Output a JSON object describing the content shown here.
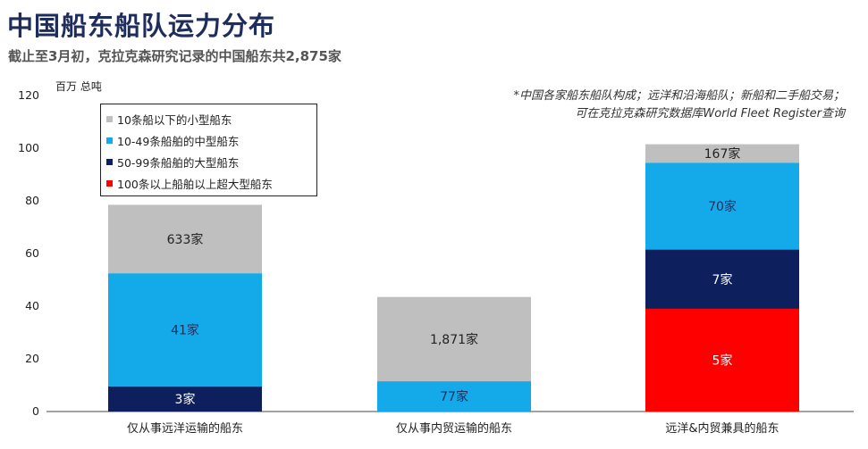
{
  "title": "中国船东船队运力分布",
  "subtitle": "截止至3月初，克拉克森研究记录的中国船东共2,875家",
  "note": {
    "line1": "*中国各家船东船队构成；远洋和沿海船队；新船和二手船交易；",
    "line2": "可在克拉克森研究数据库World Fleet Register查询"
  },
  "chart_data": {
    "type": "bar",
    "stacked": true,
    "title": "中国船东船队运力分布",
    "ylabel": "百万 总吨",
    "xlabel": "",
    "ylim": [
      0,
      120
    ],
    "yticks": [
      0,
      20,
      40,
      60,
      80,
      100,
      120
    ],
    "grid": false,
    "legend_position": "top-left",
    "categories": [
      "仅从事远洋运输的船东",
      "仅从事内贸运输的船东",
      "远洋&内贸兼具的船东"
    ],
    "series": [
      {
        "name": "100条以上船舶以上超大型船东",
        "color": "#ff0000",
        "text_color": "#ffffff",
        "values": [
          0,
          0,
          39
        ],
        "labels": [
          "",
          "",
          "5家"
        ]
      },
      {
        "name": "50-99条船舶的大型船东",
        "color": "#0d1f5c",
        "text_color": "#ffffff",
        "values": [
          9.5,
          0,
          22.5
        ],
        "labels": [
          "3家",
          "",
          "7家"
        ]
      },
      {
        "name": "10-49条船舶的中型船东",
        "color": "#14a9e9",
        "text_color": "#1f2d5c",
        "values": [
          43,
          11.5,
          33
        ],
        "labels": [
          "41家",
          "77家",
          "70家"
        ]
      },
      {
        "name": "10条船以下的小型船东",
        "color": "#bfbfbf",
        "text_color": "#222222",
        "values": [
          26,
          32,
          7
        ],
        "labels": [
          "633家",
          "1,871家",
          "167家"
        ]
      }
    ]
  }
}
